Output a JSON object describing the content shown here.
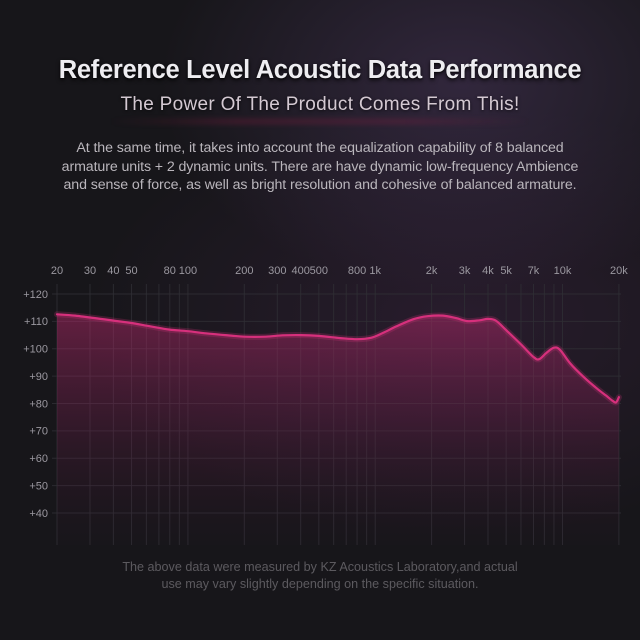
{
  "page": {
    "background_color": "#17161a",
    "accent_color": "#d6307c"
  },
  "header": {
    "title": "Reference Level Acoustic Data Performance",
    "subtitle": "The Power Of The Product Comes From This!",
    "title_color": "#eeedf1",
    "subtitle_color": "#d4c9d2"
  },
  "intro": {
    "lines": [
      "At the same time, it takes into account the equalization capability of 8 balanced",
      "armature units + 2 dynamic units. There are have dynamic low-frequency Ambience",
      "and sense of force, as well as bright resolution and cohesive of balanced armature."
    ],
    "color": "#bab6bc"
  },
  "chart_data": {
    "type": "line",
    "title": "",
    "xlabel": "",
    "ylabel": "",
    "x_scale": "log",
    "x_range": [
      20,
      20000
    ],
    "y_range": [
      40,
      120
    ],
    "grid": true,
    "legend": "none",
    "x_tick_labels": [
      "20",
      "30",
      "40",
      "50",
      "80",
      "100",
      "200",
      "300",
      "400",
      "500",
      "800",
      "1k",
      "2k",
      "3k",
      "4k",
      "5k",
      "7k",
      "10k",
      "20k"
    ],
    "x_tick_values": [
      20,
      30,
      40,
      50,
      80,
      100,
      200,
      300,
      400,
      500,
      800,
      1000,
      2000,
      3000,
      4000,
      5000,
      7000,
      10000,
      20000
    ],
    "y_tick_labels": [
      "+120",
      "+110",
      "+100",
      "+90",
      "+80",
      "+70",
      "+60",
      "+50",
      "+40"
    ],
    "y_tick_values": [
      120,
      110,
      100,
      90,
      80,
      70,
      60,
      50,
      40
    ],
    "grid_x_values": [
      20,
      30,
      40,
      50,
      60,
      70,
      80,
      90,
      100,
      200,
      300,
      400,
      500,
      600,
      700,
      800,
      900,
      1000,
      2000,
      3000,
      4000,
      5000,
      6000,
      7000,
      8000,
      9000,
      10000,
      20000
    ],
    "grid_y_values": [
      120,
      110,
      100,
      90,
      80,
      70,
      60,
      50,
      40
    ],
    "axis_label_color": "#9b98a0",
    "grid_color": "#2f2e34",
    "series": [
      {
        "name": "frequency-response",
        "color": "#d6307c",
        "fill_top_color": "rgba(201,43,115,0.45)",
        "fill_bottom_color": "rgba(55,20,45,0.04)",
        "points": [
          [
            20,
            112.6
          ],
          [
            25,
            112.1
          ],
          [
            30,
            111.4
          ],
          [
            40,
            110.3
          ],
          [
            50,
            109.4
          ],
          [
            65,
            108.0
          ],
          [
            80,
            107.0
          ],
          [
            100,
            106.4
          ],
          [
            130,
            105.5
          ],
          [
            170,
            104.8
          ],
          [
            200,
            104.4
          ],
          [
            260,
            104.4
          ],
          [
            320,
            104.9
          ],
          [
            400,
            105.0
          ],
          [
            500,
            104.7
          ],
          [
            650,
            103.9
          ],
          [
            800,
            103.5
          ],
          [
            950,
            104.0
          ],
          [
            1100,
            105.8
          ],
          [
            1300,
            108.2
          ],
          [
            1600,
            110.8
          ],
          [
            1900,
            111.9
          ],
          [
            2300,
            112.1
          ],
          [
            2700,
            111.2
          ],
          [
            3100,
            110.1
          ],
          [
            3600,
            110.4
          ],
          [
            4000,
            110.9
          ],
          [
            4400,
            110.3
          ],
          [
            5000,
            106.8
          ],
          [
            6000,
            101.6
          ],
          [
            7000,
            97.0
          ],
          [
            7500,
            96.2
          ],
          [
            8200,
            98.5
          ],
          [
            9000,
            100.4
          ],
          [
            9700,
            99.6
          ],
          [
            11000,
            94.6
          ],
          [
            13000,
            89.6
          ],
          [
            15000,
            85.9
          ],
          [
            17000,
            83.0
          ],
          [
            18500,
            81.0
          ],
          [
            19300,
            80.4
          ],
          [
            20000,
            82.3
          ]
        ]
      }
    ]
  },
  "footer": {
    "lines": [
      "The above data were measured by KZ Acoustics Laboratory,and actual",
      "use may vary slightly depending on the specific situation."
    ],
    "color": "#5c5a5f"
  }
}
